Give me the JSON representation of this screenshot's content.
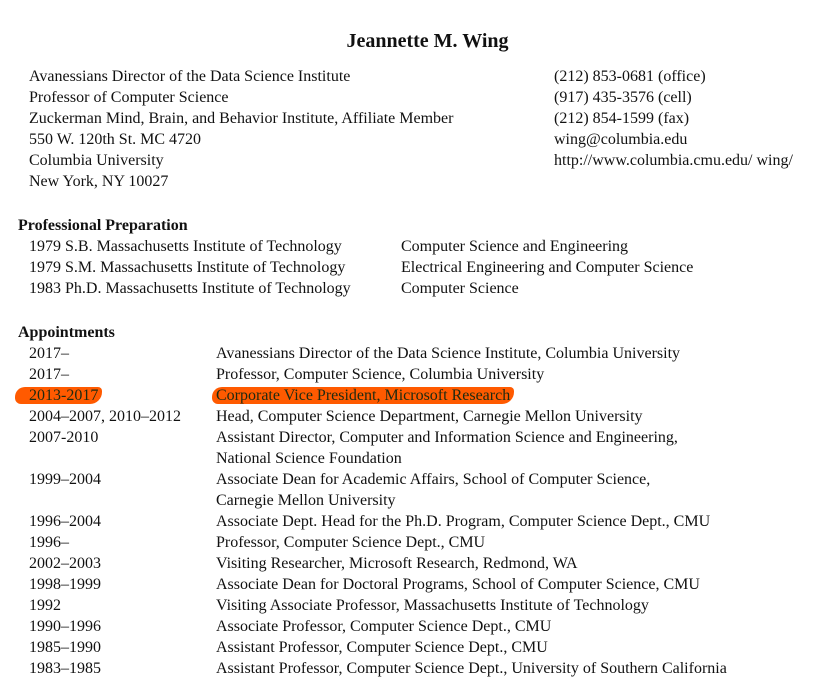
{
  "name": "Jeannette M. Wing",
  "address": [
    "Avanessians Director of the Data Science Institute",
    "Professor of Computer Science",
    "Zuckerman Mind, Brain, and Behavior Institute, Affiliate Member",
    "550 W. 120th St. MC 4720",
    "Columbia University",
    "New York, NY 10027"
  ],
  "contact": [
    "(212) 853-0681 (office)",
    "(917) 435-3576 (cell)",
    "(212) 854-1599 (fax)",
    "wing@columbia.edu",
    "http://www.columbia.cmu.edu/ wing/"
  ],
  "preparation": {
    "heading": "Professional Preparation",
    "rows": [
      {
        "degree": "1979 S.B. Massachusetts Institute of Technology",
        "field": "Computer Science and Engineering"
      },
      {
        "degree": "1979 S.M. Massachusetts Institute of Technology",
        "field": "Electrical Engineering and Computer Science"
      },
      {
        "degree": "1983 Ph.D. Massachusetts Institute of Technology",
        "field": "Computer Science"
      }
    ]
  },
  "appointments": {
    "heading": "Appointments",
    "highlight_color": "#ff5a00",
    "rows": [
      {
        "years": "2017–",
        "title": "Avanessians Director of the Data Science Institute, Columbia University"
      },
      {
        "years": "2017–",
        "title": "Professor, Computer Science, Columbia University"
      },
      {
        "years": "2013-2017",
        "title": "Corporate Vice President, Microsoft Research",
        "highlighted": true
      },
      {
        "years": "2004–2007, 2010–2012",
        "title": "Head, Computer Science Department, Carnegie Mellon University"
      },
      {
        "years": "2007-2010",
        "title": "Assistant Director, Computer and Information Science and Engineering,",
        "title2": "National Science Foundation"
      },
      {
        "years": "1999–2004",
        "title": "Associate Dean for Academic Affairs, School of Computer Science,",
        "title2": "Carnegie Mellon University"
      },
      {
        "years": "1996–2004",
        "title": "Associate Dept. Head for the Ph.D. Program, Computer Science Dept., CMU"
      },
      {
        "years": "1996–",
        "title": "Professor, Computer Science Dept., CMU"
      },
      {
        "years": "2002–2003",
        "title": "Visiting Researcher, Microsoft Research, Redmond, WA"
      },
      {
        "years": "1998–1999",
        "title": "Associate Dean for Doctoral Programs, School of Computer Science, CMU"
      },
      {
        "years": "1992",
        "title": "Visiting Associate Professor, Massachusetts Institute of Technology"
      },
      {
        "years": "1990–1996",
        "title": "Associate Professor, Computer Science Dept., CMU"
      },
      {
        "years": "1985–1990",
        "title": "Assistant Professor, Computer Science Dept., CMU"
      },
      {
        "years": "1983–1985",
        "title": "Assistant Professor, Computer Science Dept., University of Southern California"
      }
    ]
  }
}
